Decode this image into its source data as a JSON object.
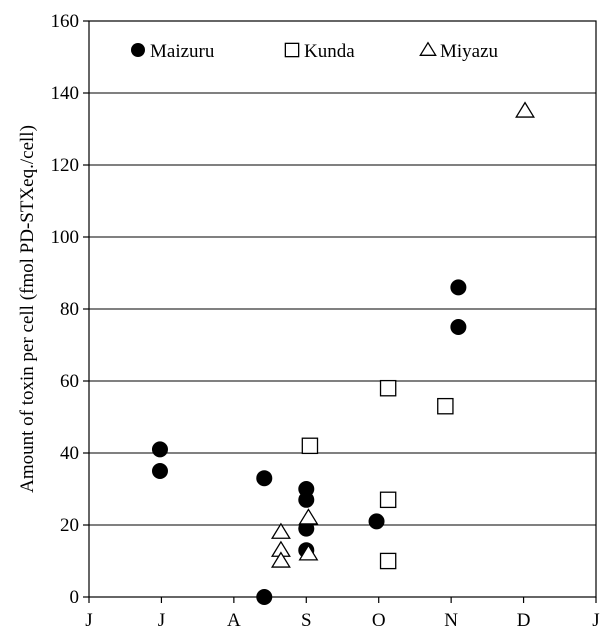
{
  "chart_data": {
    "type": "scatter",
    "title": "",
    "xlabel": "",
    "ylabel": "Amount of toxin per cell  (fmol PD-STXeq./cell)",
    "ylim": [
      0,
      160
    ],
    "yticks": [
      0,
      20,
      40,
      60,
      80,
      100,
      120,
      140,
      160
    ],
    "xlim": [
      0,
      7
    ],
    "xtick_labels": [
      "J",
      "J",
      "A",
      "S",
      "O",
      "N",
      "D",
      "J"
    ],
    "grid": "horizontal",
    "legend_position": "top",
    "series": [
      {
        "name": "Maizuru",
        "marker": "filled-circle",
        "points": [
          {
            "x": 0.98,
            "y": 41
          },
          {
            "x": 0.98,
            "y": 35
          },
          {
            "x": 2.42,
            "y": 33
          },
          {
            "x": 2.42,
            "y": 0
          },
          {
            "x": 3.0,
            "y": 30
          },
          {
            "x": 3.0,
            "y": 27
          },
          {
            "x": 3.0,
            "y": 19
          },
          {
            "x": 3.0,
            "y": 13
          },
          {
            "x": 3.97,
            "y": 21
          },
          {
            "x": 5.1,
            "y": 86
          },
          {
            "x": 5.1,
            "y": 75
          }
        ]
      },
      {
        "name": "Kunda",
        "marker": "open-square",
        "points": [
          {
            "x": 3.05,
            "y": 42
          },
          {
            "x": 4.13,
            "y": 58
          },
          {
            "x": 4.13,
            "y": 27
          },
          {
            "x": 4.13,
            "y": 10
          },
          {
            "x": 4.92,
            "y": 53
          }
        ]
      },
      {
        "name": "Miyazu",
        "marker": "open-triangle",
        "points": [
          {
            "x": 2.65,
            "y": 18
          },
          {
            "x": 2.65,
            "y": 13
          },
          {
            "x": 2.65,
            "y": 10
          },
          {
            "x": 3.03,
            "y": 22
          },
          {
            "x": 3.03,
            "y": 12
          },
          {
            "x": 6.02,
            "y": 135
          }
        ]
      }
    ]
  }
}
